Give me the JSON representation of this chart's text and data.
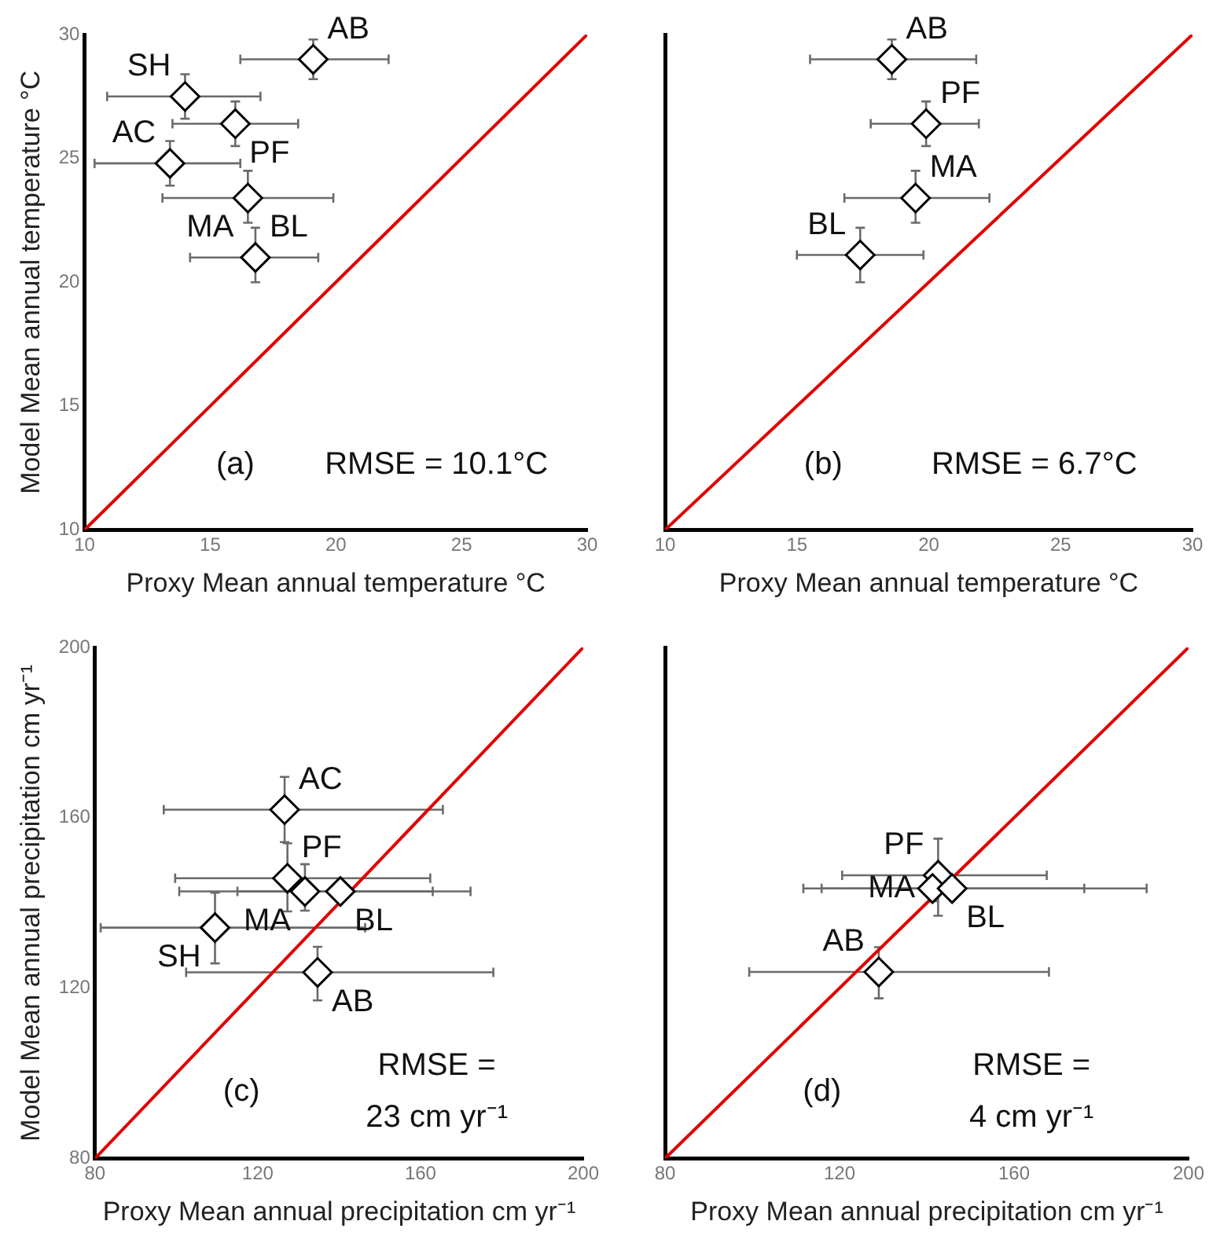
{
  "chart_data": [
    {
      "type": "scatter",
      "xlabel": "Proxy Mean annual temperature °C",
      "ylabel": "Model Mean annual temperature °C",
      "xlim": [
        10,
        30
      ],
      "ylim": [
        10,
        30
      ],
      "xticks": [
        10,
        15,
        20,
        25,
        30
      ],
      "yticks": [
        10,
        15,
        20,
        25,
        30
      ],
      "grid": false,
      "legend": false,
      "series": [
        {
          "marker": "diamond",
          "color": "#000000",
          "x": [
            19.1,
            14.0,
            16.0,
            13.4,
            16.5,
            16.8
          ],
          "values": [
            29.0,
            27.5,
            26.4,
            24.8,
            23.4,
            21.0
          ],
          "value_labels": [
            "AB",
            "SH",
            "PF",
            "AC",
            "MA",
            "BL"
          ],
          "errors": [
            [
              28.2,
              29.8
            ],
            [
              26.6,
              28.4
            ],
            [
              25.5,
              27.3
            ],
            [
              23.9,
              25.7
            ],
            [
              22.4,
              24.5
            ],
            [
              20.0,
              22.2
            ]
          ],
          "xerrors": [
            [
              16.2,
              22.1
            ],
            [
              10.9,
              17.0
            ],
            [
              13.5,
              18.5
            ],
            [
              10.4,
              16.2
            ],
            [
              13.1,
              19.9
            ],
            [
              14.2,
              19.3
            ]
          ]
        },
        {
          "type": "line",
          "color": "#e00000",
          "line_style": "solid",
          "x": [
            10,
            30
          ],
          "values": [
            10,
            30
          ]
        }
      ],
      "annotations": [
        "(a)",
        "RMSE = 10.1°C"
      ]
    },
    {
      "type": "scatter",
      "xlabel": "Proxy Mean annual temperature °C",
      "xlim": [
        10,
        30
      ],
      "ylim": [
        10,
        30
      ],
      "xticks": [
        10,
        15,
        20,
        25,
        30
      ],
      "yticks": [
        10,
        15,
        20,
        25,
        30
      ],
      "tick_labels": "x",
      "grid": false,
      "legend": false,
      "series": [
        {
          "marker": "diamond",
          "color": "#000000",
          "x": [
            18.6,
            19.9,
            19.5,
            17.4
          ],
          "values": [
            29.0,
            26.4,
            23.4,
            21.1
          ],
          "value_labels": [
            "AB",
            "PF",
            "MA",
            "BL"
          ],
          "errors": [
            [
              28.2,
              29.8
            ],
            [
              25.5,
              27.3
            ],
            [
              22.4,
              24.5
            ],
            [
              20.0,
              22.2
            ]
          ],
          "xerrors": [
            [
              15.5,
              21.8
            ],
            [
              17.8,
              21.9
            ],
            [
              16.8,
              22.3
            ],
            [
              15.0,
              19.8
            ]
          ]
        },
        {
          "type": "line",
          "color": "#e00000",
          "line_style": "solid",
          "x": [
            10,
            30
          ],
          "values": [
            10,
            30
          ]
        }
      ],
      "annotations": [
        "(b)",
        "RMSE = 6.7°C"
      ]
    },
    {
      "type": "scatter",
      "xlabel": "Proxy Mean annual precipitation cm yr⁻¹",
      "ylabel": "Model Mean annual precipitation cm yr⁻¹",
      "xlim": [
        80,
        200
      ],
      "ylim": [
        80,
        200
      ],
      "xticks": [
        80,
        120,
        160,
        200
      ],
      "yticks": [
        80,
        120,
        160,
        200
      ],
      "grid": false,
      "legend": false,
      "series": [
        {
          "marker": "diamond",
          "color": "#000000",
          "x": [
            126.6,
            127.3,
            131.6,
            140.3,
            109.5,
            134.7
          ],
          "values": [
            161.9,
            145.8,
            142.7,
            142.7,
            134.2,
            123.7
          ],
          "value_labels": [
            "AC",
            "PF",
            "MA",
            "BL",
            "SH",
            "AB"
          ],
          "errors": [
            [
              154.3,
              169.6
            ],
            [
              138,
              154
            ],
            [
              138.2,
              149.1
            ],
            [
              140.7,
              144.7
            ],
            [
              125.8,
              142.4
            ],
            [
              117.1,
              129.7
            ]
          ],
          "xerrors": [
            [
              96.9,
              165.5
            ],
            [
              99.7,
              162.4
            ],
            [
              100.7,
              163
            ],
            [
              115,
              172.3
            ],
            [
              81.4,
              146.4
            ],
            [
              102.4,
              177.9
            ]
          ]
        },
        {
          "type": "line",
          "color": "#e00000",
          "line_style": "solid",
          "x": [
            80,
            200
          ],
          "values": [
            80,
            200
          ]
        }
      ],
      "annotations": [
        "(c)",
        "RMSE =\n23 cm yr⁻¹"
      ]
    },
    {
      "type": "scatter",
      "xlabel": "Proxy Mean annual precipitation cm yr⁻¹",
      "xlim": [
        80,
        200
      ],
      "ylim": [
        80,
        200
      ],
      "xticks": [
        80,
        120,
        160,
        200
      ],
      "yticks": [
        80,
        120,
        160,
        200
      ],
      "tick_labels": "x",
      "grid": false,
      "legend": false,
      "series": [
        {
          "marker": "diamond",
          "color": "#000000",
          "x": [
            142.6,
            141.3,
            145.8,
            129.0
          ],
          "values": [
            146.5,
            143.4,
            143.4,
            123.8
          ],
          "value_labels": [
            "PF",
            "MA",
            "BL",
            "AB"
          ],
          "errors": [
            [
              137,
              155.1
            ],
            [
              140.4,
              146.4
            ],
            [
              141.4,
              145.4
            ],
            [
              117.6,
              129.6
            ]
          ],
          "xerrors": [
            [
              120.6,
              167.5
            ],
            [
              111.7,
              176.1
            ],
            [
              115.9,
              190.4
            ],
            [
              99.3,
              168.0
            ]
          ]
        },
        {
          "type": "line",
          "color": "#e00000",
          "line_style": "solid",
          "x": [
            80,
            200
          ],
          "values": [
            80,
            200
          ]
        }
      ],
      "annotations": [
        "(d)",
        "RMSE =\n4 cm yr⁻¹"
      ]
    }
  ]
}
